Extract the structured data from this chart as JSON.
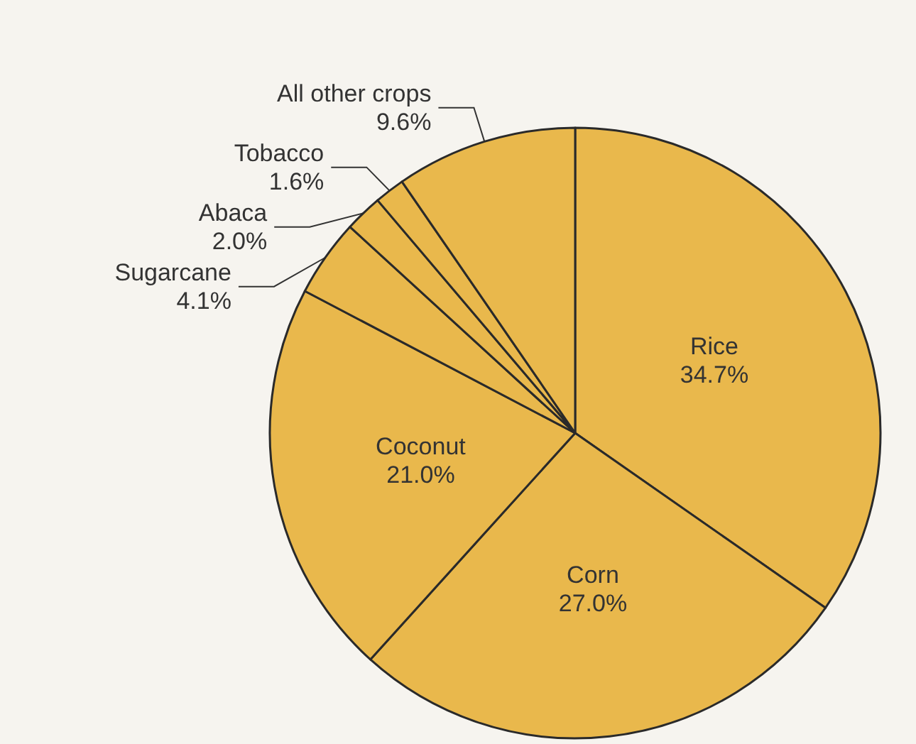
{
  "chart_data": {
    "type": "pie",
    "categories": [
      "Rice",
      "Corn",
      "Coconut",
      "Sugarcane",
      "Abaca",
      "Tobacco",
      "All other crops"
    ],
    "values": [
      34.7,
      27.0,
      21.0,
      4.1,
      2.0,
      1.6,
      9.6
    ],
    "colors": [
      "#e9b84c",
      "#e9b84c",
      "#e9b84c",
      "#e9b84c",
      "#e9b84c",
      "#e9b84c",
      "#e9b84c"
    ],
    "value_labels": [
      "34.7%",
      "27.0%",
      "21.0%",
      "4.1%",
      "2.0%",
      "1.6%",
      "9.6%"
    ],
    "legend": false
  }
}
